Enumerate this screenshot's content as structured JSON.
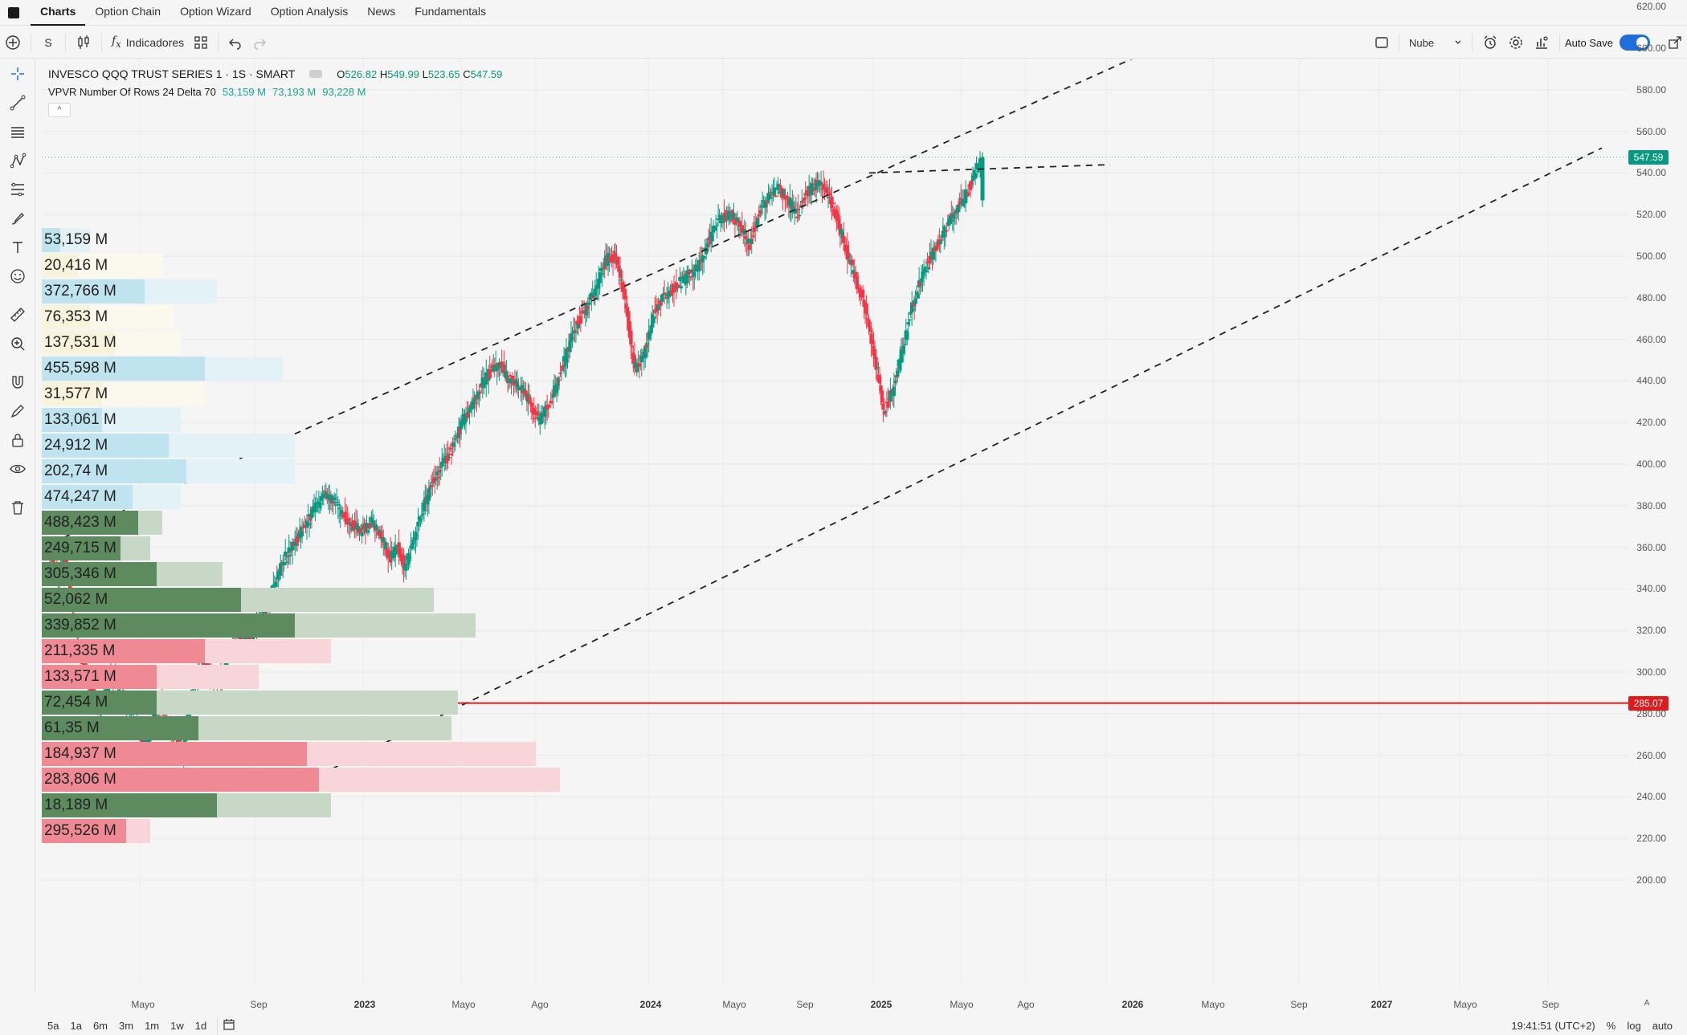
{
  "menu": {
    "tabs": [
      {
        "label": "Charts",
        "active": true
      },
      {
        "label": "Option Chain",
        "active": false
      },
      {
        "label": "Option Wizard",
        "active": false
      },
      {
        "label": "Option Analysis",
        "active": false
      },
      {
        "label": "News",
        "active": false
      },
      {
        "label": "Fundamentals",
        "active": false
      }
    ]
  },
  "toolbar": {
    "interval": "S",
    "indicators_label": "Indicadores",
    "layout_label": "Nube",
    "autosave_label": "Auto Save",
    "autosave_on": true
  },
  "legend": {
    "symbol": "INVESCO QQQ TRUST SERIES 1 · 1S · SMART",
    "o_label": "O",
    "o_value": "526.82",
    "h_label": "H",
    "h_value": "549.99",
    "l_label": "L",
    "l_value": "523.65",
    "c_label": "C",
    "c_value": "547.59",
    "indicator": "VPVR Number Of Rows 24 Delta 70",
    "indicator_values": [
      "53,159 M",
      "73,193 M",
      "93,228 M"
    ],
    "collapse": "^"
  },
  "price_axis": {
    "ticks": [
      "620.00",
      "600.00",
      "580.00",
      "560.00",
      "540.00",
      "520.00",
      "500.00",
      "480.00",
      "460.00",
      "440.00",
      "420.00",
      "400.00",
      "380.00",
      "360.00",
      "340.00",
      "320.00",
      "300.00",
      "280.00",
      "260.00",
      "240.00",
      "220.00",
      "200.00"
    ],
    "last_price": "547.59",
    "last_price_value": 547.59,
    "last_price_color": "#089981",
    "hline_price": "285.07",
    "hline_value": 285.07,
    "hline_color": "#e01b1b"
  },
  "time_axis": {
    "ticks": [
      {
        "label": "Mayo",
        "year": false
      },
      {
        "label": "Sep",
        "year": false
      },
      {
        "label": "2023",
        "year": true
      },
      {
        "label": "Mayo",
        "year": false
      },
      {
        "label": "Ago",
        "year": false
      },
      {
        "label": "2024",
        "year": true
      },
      {
        "label": "Mayo",
        "year": false
      },
      {
        "label": "Sep",
        "year": false
      },
      {
        "label": "2025",
        "year": true
      },
      {
        "label": "Mayo",
        "year": false
      },
      {
        "label": "Ago",
        "year": false
      },
      {
        "label": "2026",
        "year": true
      },
      {
        "label": "Mayo",
        "year": false
      },
      {
        "label": "Sep",
        "year": false
      },
      {
        "label": "2027",
        "year": true
      },
      {
        "label": "Mayo",
        "year": false
      },
      {
        "label": "Sep",
        "year": false
      }
    ],
    "corner": "A"
  },
  "volume_profile": {
    "rows": [
      {
        "label": "53,159 M",
        "kind": "blue",
        "frac_a": 0.08,
        "frac_b": 0.03
      },
      {
        "label": "20,416 M",
        "kind": "yellow",
        "frac_a": 0.2,
        "frac_b": 0.06
      },
      {
        "label": "372,766 M",
        "kind": "blue",
        "frac_a": 0.29,
        "frac_b": 0.17
      },
      {
        "label": "76,353 M",
        "kind": "yellow",
        "frac_a": 0.22,
        "frac_b": 0.08
      },
      {
        "label": "137,531 M",
        "kind": "yellow",
        "frac_a": 0.23,
        "frac_b": 0.12
      },
      {
        "label": "455,598 M",
        "kind": "blue",
        "frac_a": 0.4,
        "frac_b": 0.27
      },
      {
        "label": "31,577 M",
        "kind": "yellow",
        "frac_a": 0.27,
        "frac_b": 0.1
      },
      {
        "label": "133,061 M",
        "kind": "blue",
        "frac_a": 0.23,
        "frac_b": 0.1
      },
      {
        "label": "24,912 M",
        "kind": "blue",
        "frac_a": 0.42,
        "frac_b": 0.21
      },
      {
        "label": "202,74 M",
        "kind": "blue",
        "frac_a": 0.42,
        "frac_b": 0.24
      },
      {
        "label": "474,247 M",
        "kind": "blue",
        "frac_a": 0.23,
        "frac_b": 0.15
      },
      {
        "label": "488,423 M",
        "kind": "green",
        "frac_a": 0.2,
        "frac_b": 0.16
      },
      {
        "label": "249,715 M",
        "kind": "green",
        "frac_a": 0.18,
        "frac_b": 0.13
      },
      {
        "label": "305,346 M",
        "kind": "green",
        "frac_a": 0.3,
        "frac_b": 0.19
      },
      {
        "label": "52,062 M",
        "kind": "green",
        "frac_a": 0.65,
        "frac_b": 0.33
      },
      {
        "label": "339,852 M",
        "kind": "green",
        "frac_a": 0.72,
        "frac_b": 0.42
      },
      {
        "label": "211,335 M",
        "kind": "red",
        "frac_a": 0.48,
        "frac_b": 0.27
      },
      {
        "label": "133,571 M",
        "kind": "red",
        "frac_a": 0.36,
        "frac_b": 0.19
      },
      {
        "label": "72,454 M",
        "kind": "green",
        "frac_a": 0.69,
        "frac_b": 0.19
      },
      {
        "label": "61,35 M",
        "kind": "green",
        "frac_a": 0.68,
        "frac_b": 0.26
      },
      {
        "label": "184,937 M",
        "kind": "red",
        "frac_a": 0.82,
        "frac_b": 0.44
      },
      {
        "label": "283,806 M",
        "kind": "red",
        "frac_a": 0.86,
        "frac_b": 0.46
      },
      {
        "label": "18,189 M",
        "kind": "green",
        "frac_a": 0.48,
        "frac_b": 0.29
      },
      {
        "label": "295,526 M",
        "kind": "red",
        "frac_a": 0.18,
        "frac_b": 0.14
      }
    ]
  },
  "colors": {
    "up": "#089981",
    "down": "#f23645",
    "vp_blue": "#bfe3ef",
    "vp_blue_light": "#e2f2f6",
    "vp_yellow": "#f7f3dc",
    "vp_yellow_light": "#fbf9ee",
    "vp_green": "#5d8a5e",
    "vp_green_light": "#c8d8c7",
    "vp_red": "#ef8a94",
    "vp_red_light": "#f8d5d9"
  },
  "bottom_bar": {
    "ranges": [
      "5a",
      "1a",
      "6m",
      "3m",
      "1m",
      "1w",
      "1d"
    ],
    "clock": "19:41:51 (UTC+2)",
    "pct": "%",
    "log": "log",
    "auto": "auto"
  }
}
